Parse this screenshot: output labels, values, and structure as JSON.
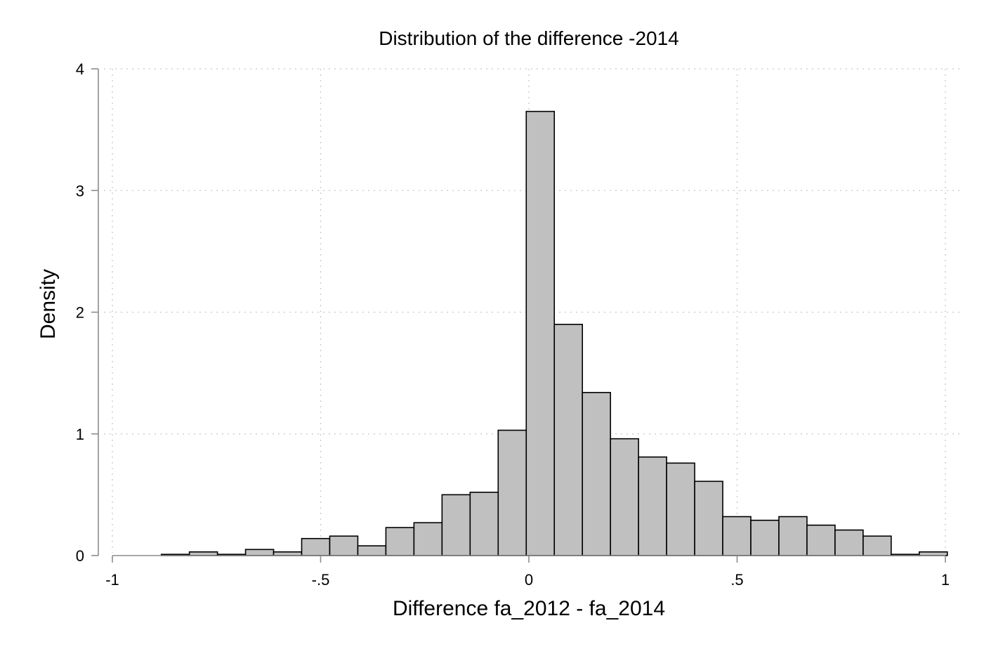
{
  "chart_data": {
    "type": "bar",
    "title": "Distribution of the difference -2014",
    "xlabel": "Difference fa_2012 - fa_2014",
    "ylabel": "Density",
    "xlim": [
      -1,
      1
    ],
    "ylim": [
      0,
      4
    ],
    "xticks": [
      -1,
      -0.5,
      0,
      0.5,
      1
    ],
    "xtick_labels": [
      "-1",
      "-.5",
      "0",
      ".5",
      "1"
    ],
    "yticks": [
      0,
      1,
      2,
      3,
      4
    ],
    "ytick_labels": [
      "0",
      "1",
      "2",
      "3",
      "4"
    ],
    "grid": true,
    "bin_edges": [
      -0.8825,
      -0.8151,
      -0.7477,
      -0.6803,
      -0.6129,
      -0.5455,
      -0.4781,
      -0.4107,
      -0.3433,
      -0.2759,
      -0.2085,
      -0.1411,
      -0.0737,
      -0.0063,
      0.0611,
      0.1285,
      0.1959,
      0.2633,
      0.3307,
      0.3981,
      0.4655,
      0.5329,
      0.6003,
      0.6677,
      0.7351,
      0.8025,
      0.8699,
      0.9373,
      1.0047
    ],
    "values": [
      0.01,
      0.03,
      0.01,
      0.05,
      0.03,
      0.14,
      0.16,
      0.08,
      0.23,
      0.27,
      0.5,
      0.52,
      1.03,
      3.65,
      1.9,
      1.34,
      0.96,
      0.81,
      0.76,
      0.61,
      0.32,
      0.29,
      0.32,
      0.25,
      0.21,
      0.16,
      0.01,
      0.03
    ]
  }
}
